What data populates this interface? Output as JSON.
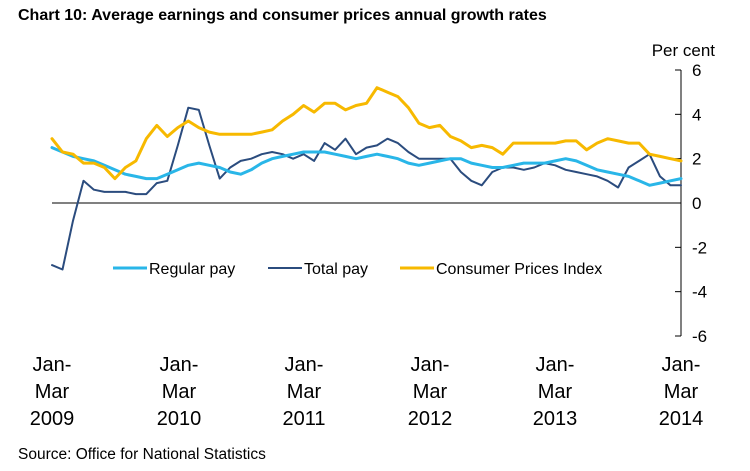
{
  "title": "Chart 10: Average earnings and consumer prices annual growth rates",
  "source": "Source: Office for National Statistics",
  "chart_data": {
    "type": "line",
    "title": "Chart 10: Average earnings and consumer prices annual growth rates",
    "y_unit_label": "Per cent",
    "ylim": [
      -6,
      6
    ],
    "yticks": [
      6,
      4,
      2,
      0,
      -2,
      -4,
      -6
    ],
    "x_period_labels": [
      [
        "Jan-",
        "Mar",
        "2009"
      ],
      [
        "Jan-",
        "Mar",
        "2010"
      ],
      [
        "Jan-",
        "Mar",
        "2011"
      ],
      [
        "Jan-",
        "Mar",
        "2012"
      ],
      [
        "Jan-",
        "Mar",
        "2013"
      ],
      [
        "Jan-",
        "Mar",
        "2014"
      ]
    ],
    "x_note": "Monthly rolling three-month periods from Jan-Mar 2009 to Jan-Mar 2014 (61 points)",
    "legend_position": "center",
    "series": [
      {
        "name": "Regular pay",
        "color": "#29B6E8",
        "values": [
          2.5,
          2.3,
          2.1,
          2.0,
          1.9,
          1.7,
          1.5,
          1.3,
          1.2,
          1.1,
          1.1,
          1.3,
          1.5,
          1.7,
          1.8,
          1.7,
          1.6,
          1.4,
          1.3,
          1.5,
          1.8,
          2.0,
          2.1,
          2.2,
          2.3,
          2.3,
          2.3,
          2.2,
          2.1,
          2.0,
          2.1,
          2.2,
          2.1,
          2.0,
          1.8,
          1.7,
          1.8,
          1.9,
          2.0,
          2.0,
          1.8,
          1.7,
          1.6,
          1.6,
          1.7,
          1.8,
          1.8,
          1.8,
          1.9,
          2.0,
          1.9,
          1.7,
          1.5,
          1.4,
          1.3,
          1.2,
          1.0,
          0.8,
          0.9,
          1.0,
          1.1
        ]
      },
      {
        "name": "Total pay",
        "color": "#2B4C7E",
        "values": [
          -2.8,
          -3.0,
          -0.8,
          1.0,
          0.6,
          0.5,
          0.5,
          0.5,
          0.4,
          0.4,
          0.9,
          1.0,
          2.6,
          4.3,
          4.2,
          2.6,
          1.1,
          1.6,
          1.9,
          2.0,
          2.2,
          2.3,
          2.2,
          2.0,
          2.2,
          1.9,
          2.7,
          2.4,
          2.9,
          2.2,
          2.5,
          2.6,
          2.9,
          2.7,
          2.3,
          2.0,
          2.0,
          2.0,
          2.0,
          1.4,
          1.0,
          0.8,
          1.4,
          1.6,
          1.6,
          1.5,
          1.6,
          1.8,
          1.7,
          1.5,
          1.4,
          1.3,
          1.2,
          1.0,
          0.7,
          1.6,
          1.9,
          2.2,
          1.2,
          0.8,
          0.8
        ]
      },
      {
        "name": "Consumer Prices Index",
        "color": "#F7B900",
        "values": [
          2.9,
          2.3,
          2.2,
          1.8,
          1.8,
          1.6,
          1.1,
          1.6,
          1.9,
          2.9,
          3.5,
          3.0,
          3.4,
          3.7,
          3.4,
          3.2,
          3.1,
          3.1,
          3.1,
          3.1,
          3.2,
          3.3,
          3.7,
          4.0,
          4.4,
          4.1,
          4.5,
          4.5,
          4.2,
          4.4,
          4.5,
          5.2,
          5.0,
          4.8,
          4.3,
          3.6,
          3.4,
          3.5,
          3.0,
          2.8,
          2.5,
          2.6,
          2.5,
          2.2,
          2.7,
          2.7,
          2.7,
          2.7,
          2.7,
          2.8,
          2.8,
          2.4,
          2.7,
          2.9,
          2.8,
          2.7,
          2.7,
          2.2,
          2.1,
          2.0,
          1.9
        ]
      }
    ]
  }
}
